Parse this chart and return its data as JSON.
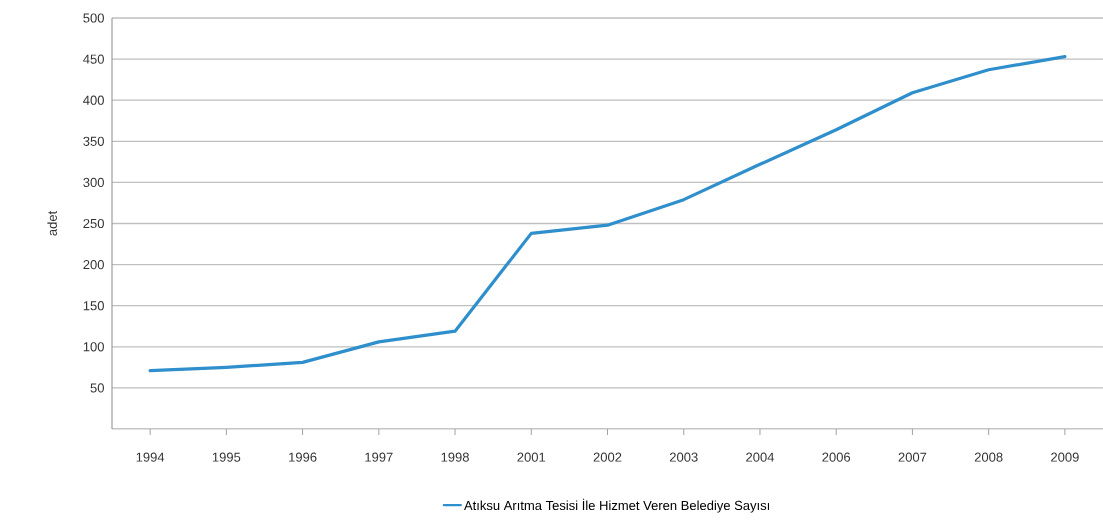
{
  "chart_data": {
    "type": "line",
    "ylabel": "adet",
    "categories": [
      "1994",
      "1995",
      "1996",
      "1997",
      "1998",
      "2001",
      "2002",
      "2003",
      "2004",
      "2006",
      "2007",
      "2008",
      "2009"
    ],
    "series": [
      {
        "name": "Atıksu Arıtma Tesisi İle Hizmet Veren Belediye Sayısı",
        "color": "#2e8fcc",
        "values": [
          71,
          75,
          81,
          106,
          119,
          238,
          248,
          279,
          322,
          364,
          409,
          437,
          453
        ]
      }
    ],
    "ylim": [
      0,
      500
    ],
    "yticks": [
      50,
      100,
      150,
      200,
      250,
      300,
      350,
      400,
      450,
      500
    ],
    "grid": "y",
    "legend": "bottom"
  }
}
